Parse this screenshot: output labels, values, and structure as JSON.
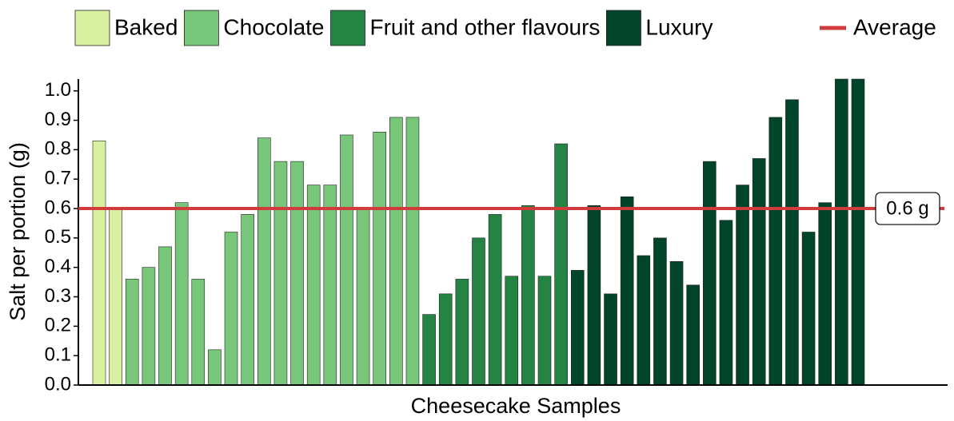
{
  "chart_data": {
    "type": "bar",
    "x_label": "Cheesecake Samples",
    "y_label": "Salt per portion (g)",
    "series": [
      {
        "name": "Baked",
        "color": "#d9f0a3",
        "values": [
          0.83,
          0.6
        ]
      },
      {
        "name": "Chocolate",
        "color": "#78c679",
        "values": [
          0.36,
          0.4,
          0.47,
          0.62,
          0.36,
          0.12,
          0.52,
          0.58,
          0.84,
          0.76,
          0.76,
          0.68,
          0.68,
          0.85,
          0.6,
          0.86,
          0.91,
          0.91
        ]
      },
      {
        "name": "Fruit and other flavours",
        "color": "#238443",
        "values": [
          0.24,
          0.31,
          0.36,
          0.5,
          0.58,
          0.37,
          0.61,
          0.37,
          0.82
        ]
      },
      {
        "name": "Luxury",
        "color": "#004529",
        "values": [
          0.39,
          0.61,
          0.31,
          0.64,
          0.44,
          0.5,
          0.42,
          0.34,
          0.76,
          0.56,
          0.68,
          0.77,
          0.91,
          0.97,
          0.52,
          0.62,
          1.04,
          1.04
        ]
      }
    ],
    "average": {
      "name": "Average",
      "value": 0.6,
      "value_label": "0.6 g",
      "color": "#d13b3b"
    },
    "ylim": [
      0,
      1.04
    ],
    "yticks": [
      {
        "value": 0,
        "label": "0.0"
      },
      0.1,
      0.2,
      0.3,
      0.4,
      0.5,
      0.6,
      0.7,
      0.8,
      0.9,
      {
        "value": 1,
        "label": "1.0"
      }
    ]
  }
}
